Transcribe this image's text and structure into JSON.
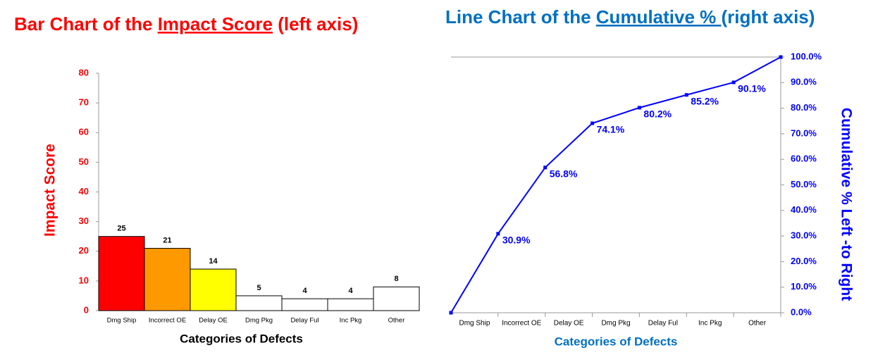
{
  "chart_data": [
    {
      "type": "bar",
      "title": [
        "Bar Chart of the ",
        "Impact Score",
        " (left axis)"
      ],
      "x_label": "Categories of Defects",
      "y_label": "Impact Score",
      "categories": [
        "Dmg Ship",
        "Incorrect OE",
        "Delay OE",
        "Dmg Pkg",
        "Delay Ful",
        "Inc Pkg",
        "Other"
      ],
      "values": [
        25,
        21,
        14,
        5,
        4,
        4,
        8
      ],
      "colors": [
        "#ff0000",
        "#ff9900",
        "#ffff00",
        "#ffffff",
        "#ffffff",
        "#ffffff",
        "#ffffff"
      ],
      "ylim": [
        0,
        80
      ],
      "yticks": [
        0,
        10,
        20,
        30,
        40,
        50,
        60,
        70,
        80
      ]
    },
    {
      "type": "line",
      "title": [
        "Line Chart of the ",
        "Cumulative % ",
        " (right axis)"
      ],
      "x_label": "Categories of Defects",
      "y2_label": "Cumulative % Left -to Right",
      "categories": [
        "Dmg Ship",
        "Incorrect OE",
        "Delay OE",
        "Dmg Pkg",
        "Delay Ful",
        "Inc Pkg",
        "Other"
      ],
      "x": [
        0,
        1,
        2,
        3,
        4,
        5,
        6,
        7
      ],
      "xlim": [
        0,
        7
      ],
      "values": [
        0,
        30.9,
        56.8,
        74.1,
        80.2,
        85.2,
        90.1,
        100.0
      ],
      "value_labels": [
        null,
        "30.9%",
        "56.8%",
        "74.1%",
        "80.2%",
        "85.2%",
        "90.1%",
        null
      ],
      "color": "#0000ff",
      "y2lim": [
        0,
        100
      ],
      "y2ticks": [
        {
          "value": 0,
          "label": "0.0%"
        },
        {
          "value": 10,
          "label": "10.0%"
        },
        {
          "value": 20,
          "label": "20.0%"
        },
        {
          "value": 30,
          "label": "30.0%"
        },
        {
          "value": 40,
          "label": "40.0%"
        },
        {
          "value": 50,
          "label": "50.0%"
        },
        {
          "value": 60,
          "label": "60.0%"
        },
        {
          "value": 70,
          "label": "70.0%"
        },
        {
          "value": 80,
          "label": "80.0%"
        },
        {
          "value": 90,
          "label": "90.0%"
        },
        {
          "value": 100,
          "label": "100.0%"
        }
      ]
    }
  ]
}
